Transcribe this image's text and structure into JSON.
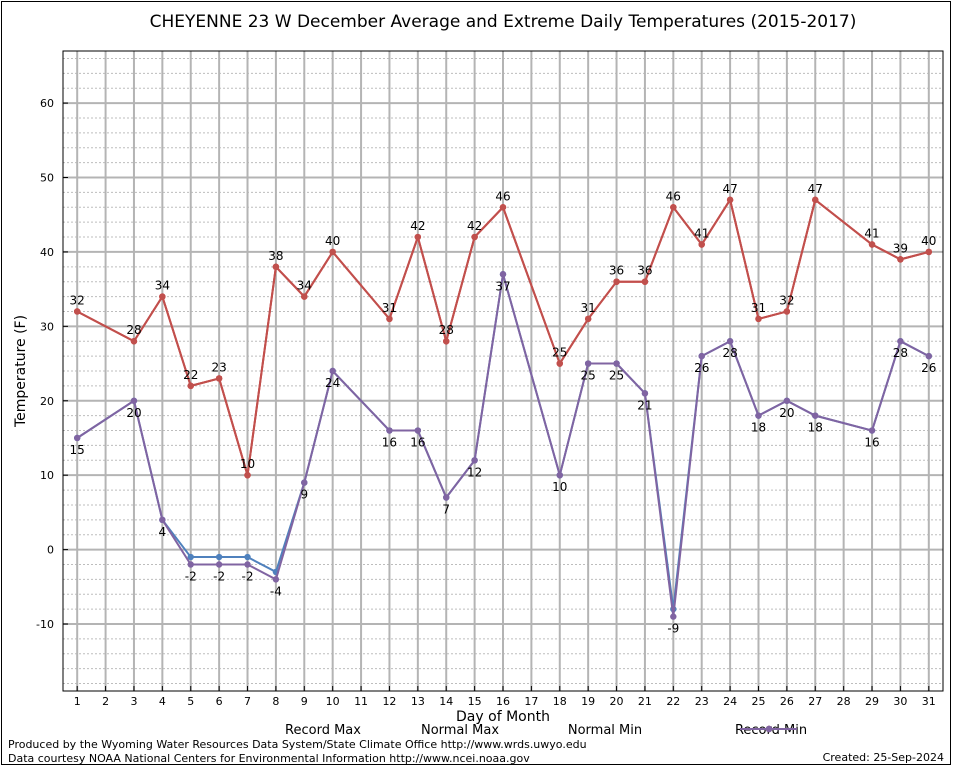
{
  "chart_data": {
    "type": "line",
    "title": "CHEYENNE 23 W December Average and Extreme Daily Temperatures (2015-2017)",
    "xlabel": "Day of Month",
    "ylabel": "Temperature (F)",
    "x": [
      1,
      2,
      3,
      4,
      5,
      6,
      7,
      8,
      9,
      10,
      11,
      12,
      13,
      14,
      15,
      16,
      17,
      18,
      19,
      20,
      21,
      22,
      23,
      24,
      25,
      26,
      27,
      28,
      29,
      30,
      31
    ],
    "xlim": [
      0.5,
      31.5
    ],
    "ylim": [
      -19,
      67
    ],
    "yticks": [
      -10,
      0,
      10,
      20,
      30,
      40,
      50,
      60
    ],
    "grid": true,
    "legend_position": "bottom",
    "series": [
      {
        "name": "Record Max",
        "color": "#dd2222",
        "points": [
          [
            1,
            32
          ],
          [
            3,
            28
          ],
          [
            4,
            34
          ],
          [
            5,
            22
          ],
          [
            6,
            23
          ],
          [
            7,
            10
          ],
          [
            8,
            38
          ],
          [
            9,
            34
          ],
          [
            10,
            40
          ],
          [
            12,
            31
          ],
          [
            13,
            42
          ],
          [
            14,
            28
          ],
          [
            15,
            42
          ],
          [
            16,
            46
          ],
          [
            18,
            25
          ],
          [
            19,
            31
          ],
          [
            20,
            36
          ],
          [
            21,
            36
          ],
          [
            22,
            46
          ],
          [
            23,
            41
          ],
          [
            24,
            47
          ],
          [
            25,
            31
          ],
          [
            26,
            32
          ],
          [
            27,
            47
          ],
          [
            29,
            41
          ],
          [
            30,
            39
          ],
          [
            31,
            40
          ]
        ]
      },
      {
        "name": "Normal Max",
        "color": "#c0504d",
        "points": [
          [
            1,
            32
          ],
          [
            3,
            28
          ],
          [
            4,
            34
          ],
          [
            5,
            22
          ],
          [
            6,
            23
          ],
          [
            7,
            10
          ],
          [
            8,
            38
          ],
          [
            9,
            34
          ],
          [
            10,
            40
          ],
          [
            12,
            31
          ],
          [
            13,
            42
          ],
          [
            14,
            28
          ],
          [
            15,
            42
          ],
          [
            16,
            46
          ],
          [
            18,
            25
          ],
          [
            19,
            31
          ],
          [
            20,
            36
          ],
          [
            21,
            36
          ],
          [
            22,
            46
          ],
          [
            23,
            41
          ],
          [
            24,
            47
          ],
          [
            25,
            31
          ],
          [
            26,
            32
          ],
          [
            27,
            47
          ],
          [
            29,
            41
          ],
          [
            30,
            39
          ],
          [
            31,
            40
          ]
        ]
      },
      {
        "name": "Normal Min",
        "color": "#4f81bd",
        "points": [
          [
            1,
            15
          ],
          [
            3,
            20
          ],
          [
            4,
            4
          ],
          [
            5,
            -1
          ],
          [
            6,
            -1
          ],
          [
            7,
            -1
          ],
          [
            8,
            -3
          ],
          [
            9,
            9
          ],
          [
            10,
            24
          ],
          [
            12,
            16
          ],
          [
            13,
            16
          ],
          [
            14,
            7
          ],
          [
            15,
            12
          ],
          [
            16,
            37
          ],
          [
            18,
            10
          ],
          [
            19,
            25
          ],
          [
            20,
            25
          ],
          [
            21,
            21
          ],
          [
            22,
            -8
          ],
          [
            23,
            26
          ],
          [
            24,
            28
          ],
          [
            25,
            18
          ],
          [
            26,
            20
          ],
          [
            27,
            18
          ],
          [
            29,
            16
          ],
          [
            30,
            28
          ],
          [
            31,
            26
          ]
        ]
      },
      {
        "name": "Record Min",
        "color": "#8064a2",
        "points": [
          [
            1,
            15
          ],
          [
            3,
            20
          ],
          [
            4,
            4
          ],
          [
            5,
            -2
          ],
          [
            6,
            -2
          ],
          [
            7,
            -2
          ],
          [
            8,
            -4
          ],
          [
            9,
            9
          ],
          [
            10,
            24
          ],
          [
            12,
            16
          ],
          [
            13,
            16
          ],
          [
            14,
            7
          ],
          [
            15,
            12
          ],
          [
            16,
            37
          ],
          [
            18,
            10
          ],
          [
            19,
            25
          ],
          [
            20,
            25
          ],
          [
            21,
            21
          ],
          [
            22,
            -9
          ],
          [
            23,
            26
          ],
          [
            24,
            28
          ],
          [
            25,
            18
          ],
          [
            26,
            20
          ],
          [
            27,
            18
          ],
          [
            29,
            16
          ],
          [
            30,
            28
          ],
          [
            31,
            26
          ]
        ]
      }
    ],
    "labels_max": [
      [
        1,
        32
      ],
      [
        3,
        28
      ],
      [
        4,
        34
      ],
      [
        5,
        22
      ],
      [
        6,
        23
      ],
      [
        7,
        10
      ],
      [
        8,
        38
      ],
      [
        9,
        34
      ],
      [
        10,
        40
      ],
      [
        12,
        31
      ],
      [
        13,
        42
      ],
      [
        14,
        28
      ],
      [
        15,
        42
      ],
      [
        16,
        46
      ],
      [
        18,
        25
      ],
      [
        19,
        31
      ],
      [
        20,
        36
      ],
      [
        21,
        36
      ],
      [
        22,
        46
      ],
      [
        23,
        41
      ],
      [
        24,
        47
      ],
      [
        25,
        31
      ],
      [
        26,
        32
      ],
      [
        27,
        47
      ],
      [
        29,
        41
      ],
      [
        30,
        39
      ],
      [
        31,
        40
      ]
    ],
    "labels_min": [
      [
        1,
        15
      ],
      [
        3,
        20
      ],
      [
        4,
        4
      ],
      [
        5,
        -2
      ],
      [
        6,
        -2
      ],
      [
        7,
        -2
      ],
      [
        8,
        -4
      ],
      [
        9,
        9
      ],
      [
        10,
        24
      ],
      [
        12,
        16
      ],
      [
        13,
        16
      ],
      [
        14,
        7
      ],
      [
        15,
        12
      ],
      [
        16,
        37
      ],
      [
        18,
        10
      ],
      [
        19,
        25
      ],
      [
        20,
        25
      ],
      [
        21,
        21
      ],
      [
        22,
        -9
      ],
      [
        23,
        26
      ],
      [
        24,
        28
      ],
      [
        25,
        18
      ],
      [
        26,
        20
      ],
      [
        27,
        18
      ],
      [
        29,
        16
      ],
      [
        30,
        28
      ],
      [
        31,
        26
      ]
    ]
  },
  "footer": {
    "producer": "Produced by the Wyoming Water Resources Data System/State Climate Office http://www.wrds.uwyo.edu",
    "source": "Data courtesy NOAA National Centers for Environmental Information http://www.ncei.noaa.gov",
    "created": "Created:  25-Sep-2024"
  }
}
